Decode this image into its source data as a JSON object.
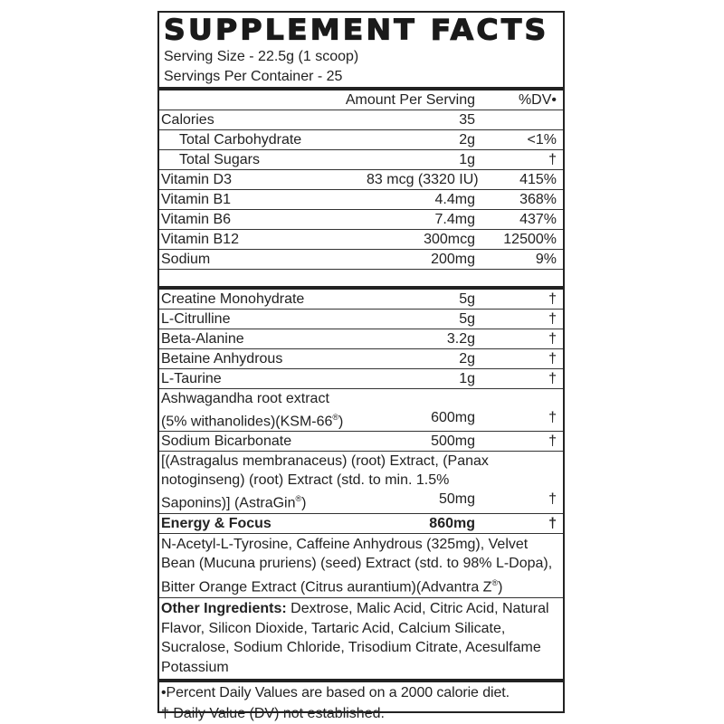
{
  "title": "SUPPLEMENT FACTS",
  "serving_size": "Serving Size - 22.5g (1 scoop)",
  "servings_per_container": "Servings Per Container - 25",
  "header": {
    "amount": "Amount Per Serving",
    "dv": "%DV•"
  },
  "nutrients": [
    {
      "name": "Calories",
      "amount": "35",
      "dv": ""
    },
    {
      "name": "Total Carbohydrate",
      "amount": "2g",
      "dv": "<1%",
      "indent": true
    },
    {
      "name": "Total Sugars",
      "amount": "1g",
      "dv": "†",
      "indent": true
    },
    {
      "name": "Vitamin D3",
      "amount": "83 mcg (3320 IU)",
      "dv": "415%"
    },
    {
      "name": "Vitamin B1",
      "amount": "4.4mg",
      "dv": "368%"
    },
    {
      "name": "Vitamin B6",
      "amount": "7.4mg",
      "dv": "437%"
    },
    {
      "name": "Vitamin B12",
      "amount": "300mcg",
      "dv": "12500%"
    },
    {
      "name": "Sodium",
      "amount": "200mg",
      "dv": "9%"
    }
  ],
  "ingredients": [
    {
      "name": "Creatine Monohydrate",
      "amount": "5g",
      "dv": "†"
    },
    {
      "name": "L-Citrulline",
      "amount": "5g",
      "dv": "†"
    },
    {
      "name": "Beta-Alanine",
      "amount": "3.2g",
      "dv": "†"
    },
    {
      "name": "Betaine Anhydrous",
      "amount": "2g",
      "dv": "†"
    },
    {
      "name": "L-Taurine",
      "amount": "1g",
      "dv": "†"
    },
    {
      "name_lines": [
        "Ashwagandha root extract",
        "(5% withanolides)(KSM-66®)"
      ],
      "amount": "600mg",
      "dv": "†"
    },
    {
      "name": "Sodium Bicarbonate",
      "amount": "500mg",
      "dv": "†"
    },
    {
      "name_lines": [
        "[(Astragalus membranaceus) (root) Extract, (Panax",
        "notoginseng) (root) Extract (std. to min. 1.5%",
        "Saponins)] (AstraGin®)"
      ],
      "amount": "50mg",
      "dv": "†"
    }
  ],
  "blend": {
    "name": "Energy & Focus",
    "amount": "860mg",
    "dv": "†",
    "contents": "N-Acetyl-L-Tyrosine, Caffeine Anhydrous (325mg), Velvet Bean (Mucuna pruriens) (seed) Extract (std. to 98% L-Dopa), Bitter Orange Extract (Citrus aurantium)(Advantra Z®)"
  },
  "other_ingredients": {
    "label": "Other Ingredients:",
    "text": "Dextrose, Malic Acid, Citric Acid, Natural Flavor, Silicon Dioxide, Tartaric Acid, Calcium Silicate, Sucralose, Sodium Chloride, Trisodium Citrate, Acesulfame Potassium"
  },
  "footnotes": [
    "•Percent Daily Values are based on a 2000 calorie diet.",
    "† Daily Value (DV) not established."
  ]
}
